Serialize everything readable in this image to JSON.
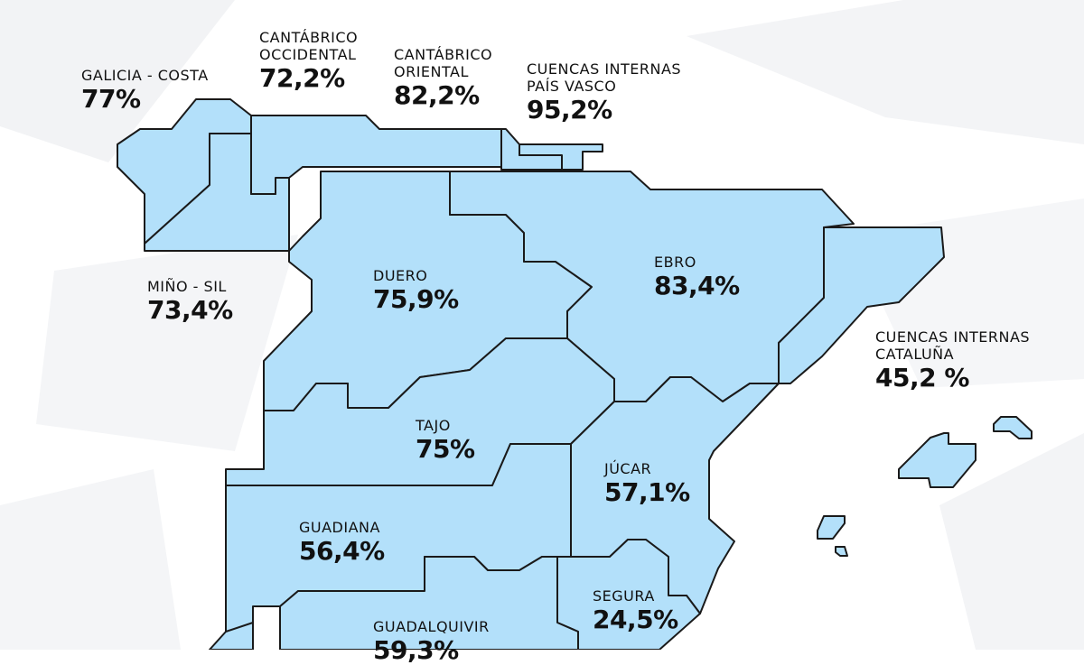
{
  "map": {
    "colors": {
      "region_fill": "#b3e0fa",
      "border": "#1a1a1a",
      "background": "#ffffff"
    },
    "regions": [
      {
        "id": "galicia-costa",
        "name": "GALICIA - COSTA",
        "value": "77%"
      },
      {
        "id": "cantabrico-occidental",
        "name": "CANTÁBRICO\nOCCIDENTAL",
        "value": "72,2%"
      },
      {
        "id": "cantabrico-oriental",
        "name": "CANTÁBRICO\nORIENTAL",
        "value": "82,2%"
      },
      {
        "id": "cuencas-internas-pais-vasco",
        "name": "CUENCAS INTERNAS\nPAÍS VASCO",
        "value": "95,2%"
      },
      {
        "id": "mino-sil",
        "name": "MIÑO - SIL",
        "value": "73,4%"
      },
      {
        "id": "duero",
        "name": "DUERO",
        "value": "75,9%"
      },
      {
        "id": "ebro",
        "name": "EBRO",
        "value": "83,4%"
      },
      {
        "id": "cuencas-internas-cataluna",
        "name": "CUENCAS INTERNAS\nCATALUÑA",
        "value": "45,2 %"
      },
      {
        "id": "tajo",
        "name": "TAJO",
        "value": "75%"
      },
      {
        "id": "jucar",
        "name": "JÚCAR",
        "value": "57,1%"
      },
      {
        "id": "guadiana",
        "name": "GUADIANA",
        "value": "56,4%"
      },
      {
        "id": "segura",
        "name": "SEGURA",
        "value": "24,5%"
      },
      {
        "id": "guadalquivir",
        "name": "GUADALQUIVIR",
        "value": "59,3%"
      }
    ]
  }
}
